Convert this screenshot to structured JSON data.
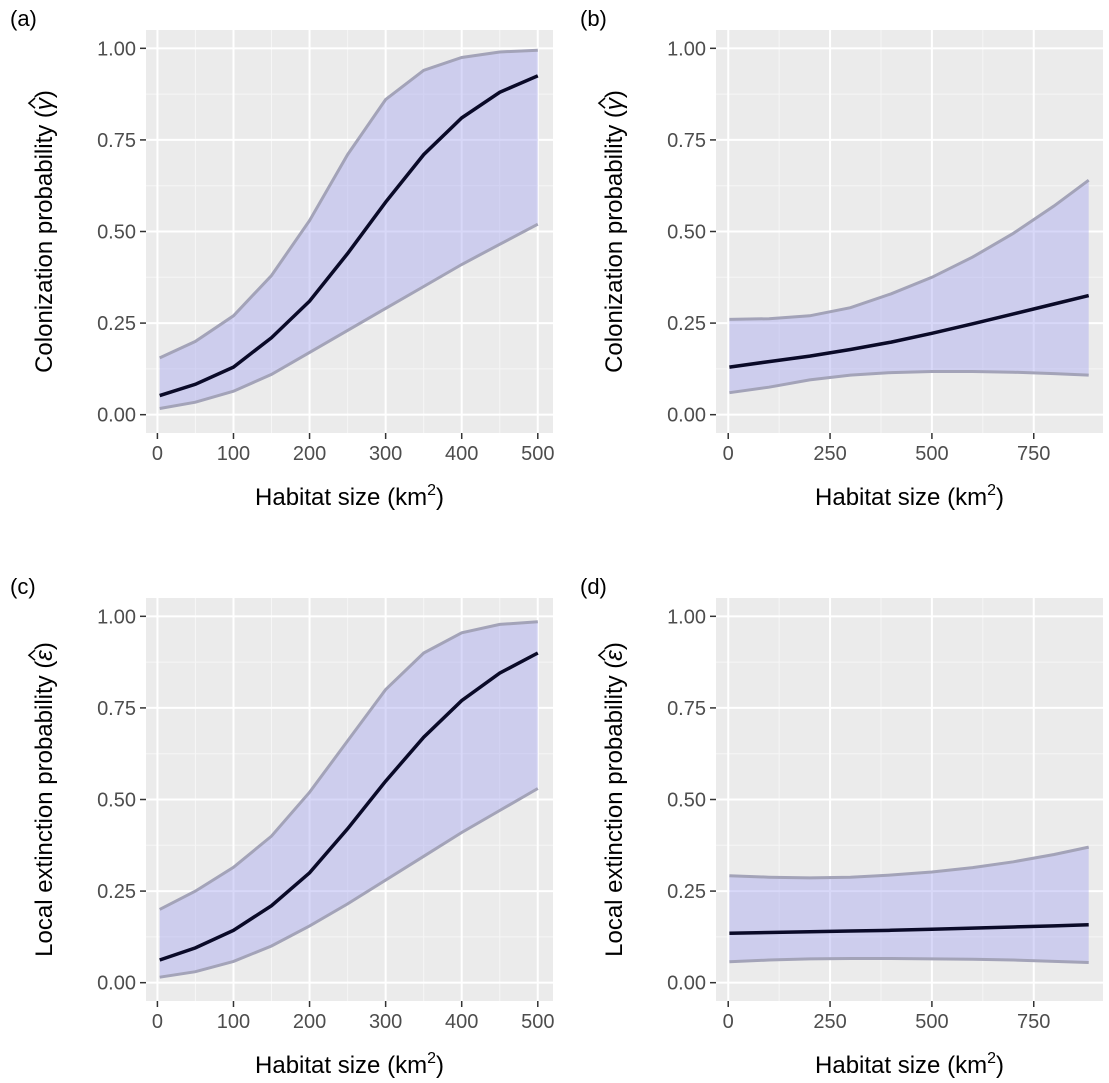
{
  "figure": {
    "band_fill": "#a9a9f0",
    "band_edge": "#a3a3b8",
    "line_color": "#0a0a28",
    "panel_bg": "#ebebeb"
  },
  "chart_data": [
    {
      "panel": "(a)",
      "type": "line",
      "xlabel": "Habitat size (km",
      "xlabel_sup": "2",
      "xlabel_close": ")",
      "ylabel": "Colonization probability (",
      "ylabel_symbol": "γ",
      "ylabel_close": ")",
      "xlim": [
        -15,
        520
      ],
      "ylim": [
        -0.05,
        1.05
      ],
      "xticks": [
        0,
        100,
        200,
        300,
        400,
        500
      ],
      "xtick_labels": [
        "0",
        "100",
        "200",
        "300",
        "400",
        "500"
      ],
      "yticks": [
        0,
        0.25,
        0.5,
        0.75,
        1
      ],
      "ytick_labels": [
        "0.00",
        "0.25",
        "0.50",
        "0.75",
        "1.00"
      ],
      "series": [
        {
          "role": "estimate",
          "x": [
            3,
            50,
            100,
            150,
            200,
            250,
            300,
            350,
            400,
            450,
            500
          ],
          "y": [
            0.052,
            0.083,
            0.13,
            0.21,
            0.31,
            0.44,
            0.58,
            0.71,
            0.81,
            0.88,
            0.925
          ]
        },
        {
          "role": "upper",
          "x": [
            3,
            50,
            100,
            150,
            200,
            250,
            300,
            350,
            400,
            450,
            500
          ],
          "y": [
            0.155,
            0.2,
            0.27,
            0.38,
            0.53,
            0.71,
            0.86,
            0.94,
            0.975,
            0.99,
            0.995
          ]
        },
        {
          "role": "lower",
          "x": [
            3,
            50,
            100,
            150,
            200,
            250,
            300,
            350,
            400,
            450,
            500
          ],
          "y": [
            0.017,
            0.034,
            0.064,
            0.11,
            0.17,
            0.23,
            0.29,
            0.35,
            0.41,
            0.465,
            0.52
          ]
        }
      ]
    },
    {
      "panel": "(b)",
      "type": "line",
      "xlabel": "Habitat size (km",
      "xlabel_sup": "2",
      "xlabel_close": ")",
      "ylabel": "Colonization probability (",
      "ylabel_symbol": "γ",
      "ylabel_close": ")",
      "xlim": [
        -30,
        920
      ],
      "ylim": [
        -0.05,
        1.05
      ],
      "xticks": [
        0,
        250,
        500,
        750
      ],
      "xtick_labels": [
        "0",
        "250",
        "500",
        "750"
      ],
      "yticks": [
        0,
        0.25,
        0.5,
        0.75,
        1
      ],
      "ytick_labels": [
        "0.00",
        "0.25",
        "0.50",
        "0.75",
        "1.00"
      ],
      "series": [
        {
          "role": "estimate",
          "x": [
            3,
            100,
            200,
            300,
            400,
            500,
            600,
            700,
            800,
            885
          ],
          "y": [
            0.13,
            0.145,
            0.16,
            0.178,
            0.198,
            0.222,
            0.248,
            0.275,
            0.302,
            0.325
          ]
        },
        {
          "role": "upper",
          "x": [
            3,
            100,
            200,
            300,
            400,
            500,
            600,
            700,
            800,
            885
          ],
          "y": [
            0.26,
            0.262,
            0.27,
            0.292,
            0.33,
            0.375,
            0.43,
            0.495,
            0.57,
            0.64
          ]
        },
        {
          "role": "lower",
          "x": [
            3,
            100,
            200,
            300,
            400,
            500,
            600,
            700,
            800,
            885
          ],
          "y": [
            0.06,
            0.075,
            0.095,
            0.108,
            0.115,
            0.118,
            0.118,
            0.116,
            0.112,
            0.108
          ]
        }
      ]
    },
    {
      "panel": "(c)",
      "type": "line",
      "xlabel": "Habitat size (km",
      "xlabel_sup": "2",
      "xlabel_close": ")",
      "ylabel": "Local extinction probability (",
      "ylabel_symbol": "ε",
      "ylabel_close": ")",
      "xlim": [
        -15,
        520
      ],
      "ylim": [
        -0.05,
        1.05
      ],
      "xticks": [
        0,
        100,
        200,
        300,
        400,
        500
      ],
      "xtick_labels": [
        "0",
        "100",
        "200",
        "300",
        "400",
        "500"
      ],
      "yticks": [
        0,
        0.25,
        0.5,
        0.75,
        1
      ],
      "ytick_labels": [
        "0.00",
        "0.25",
        "0.50",
        "0.75",
        "1.00"
      ],
      "series": [
        {
          "role": "estimate",
          "x": [
            3,
            50,
            100,
            150,
            200,
            250,
            300,
            350,
            400,
            450,
            500
          ],
          "y": [
            0.062,
            0.095,
            0.143,
            0.21,
            0.3,
            0.42,
            0.55,
            0.67,
            0.77,
            0.845,
            0.9
          ]
        },
        {
          "role": "upper",
          "x": [
            3,
            50,
            100,
            150,
            200,
            250,
            300,
            350,
            400,
            450,
            500
          ],
          "y": [
            0.2,
            0.25,
            0.315,
            0.4,
            0.52,
            0.66,
            0.8,
            0.9,
            0.955,
            0.978,
            0.985
          ]
        },
        {
          "role": "lower",
          "x": [
            3,
            50,
            100,
            150,
            200,
            250,
            300,
            350,
            400,
            450,
            500
          ],
          "y": [
            0.015,
            0.03,
            0.058,
            0.1,
            0.155,
            0.215,
            0.28,
            0.345,
            0.41,
            0.47,
            0.53
          ]
        }
      ]
    },
    {
      "panel": "(d)",
      "type": "line",
      "xlabel": "Habitat size (km",
      "xlabel_sup": "2",
      "xlabel_close": ")",
      "ylabel": "Local extinction probability (",
      "ylabel_symbol": "ε",
      "ylabel_close": ")",
      "xlim": [
        -30,
        920
      ],
      "ylim": [
        -0.05,
        1.05
      ],
      "xticks": [
        0,
        250,
        500,
        750
      ],
      "xtick_labels": [
        "0",
        "250",
        "500",
        "750"
      ],
      "yticks": [
        0,
        0.25,
        0.5,
        0.75,
        1
      ],
      "ytick_labels": [
        "0.00",
        "0.25",
        "0.50",
        "0.75",
        "1.00"
      ],
      "series": [
        {
          "role": "estimate",
          "x": [
            3,
            100,
            200,
            300,
            400,
            500,
            600,
            700,
            800,
            885
          ],
          "y": [
            0.135,
            0.137,
            0.139,
            0.141,
            0.143,
            0.146,
            0.149,
            0.152,
            0.155,
            0.158
          ]
        },
        {
          "role": "upper",
          "x": [
            3,
            100,
            200,
            300,
            400,
            500,
            600,
            700,
            800,
            885
          ],
          "y": [
            0.292,
            0.288,
            0.286,
            0.288,
            0.294,
            0.302,
            0.314,
            0.33,
            0.35,
            0.37
          ]
        },
        {
          "role": "lower",
          "x": [
            3,
            100,
            200,
            300,
            400,
            500,
            600,
            700,
            800,
            885
          ],
          "y": [
            0.057,
            0.062,
            0.065,
            0.066,
            0.066,
            0.065,
            0.064,
            0.062,
            0.058,
            0.055
          ]
        }
      ]
    }
  ]
}
